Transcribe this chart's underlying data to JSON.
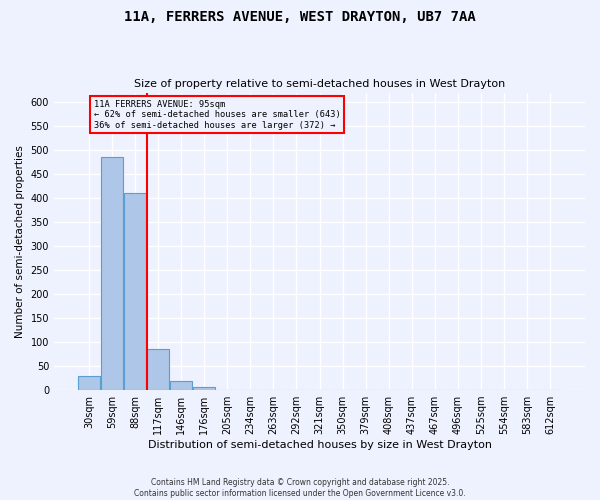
{
  "title": "11A, FERRERS AVENUE, WEST DRAYTON, UB7 7AA",
  "subtitle": "Size of property relative to semi-detached houses in West Drayton",
  "xlabel": "Distribution of semi-detached houses by size in West Drayton",
  "ylabel": "Number of semi-detached properties",
  "bar_categories": [
    "30sqm",
    "59sqm",
    "88sqm",
    "117sqm",
    "146sqm",
    "176sqm",
    "205sqm",
    "234sqm",
    "263sqm",
    "292sqm",
    "321sqm",
    "350sqm",
    "379sqm",
    "408sqm",
    "437sqm",
    "467sqm",
    "496sqm",
    "525sqm",
    "554sqm",
    "583sqm",
    "612sqm"
  ],
  "bar_values": [
    30,
    485,
    410,
    85,
    18,
    6,
    1,
    0,
    0,
    0,
    0,
    0,
    0,
    0,
    0,
    0,
    0,
    0,
    0,
    0,
    0
  ],
  "bar_color": "#aec6e8",
  "bar_edge_color": "#5a9fd4",
  "vline_color": "red",
  "annotation_title": "11A FERRERS AVENUE: 95sqm",
  "annotation_line1": "← 62% of semi-detached houses are smaller (643)",
  "annotation_line2": "36% of semi-detached houses are larger (372) →",
  "annotation_box_color": "red",
  "ylim": [
    0,
    620
  ],
  "yticks": [
    0,
    50,
    100,
    150,
    200,
    250,
    300,
    350,
    400,
    450,
    500,
    550,
    600
  ],
  "bg_color": "#eef2ff",
  "grid_color": "#ffffff",
  "footer": "Contains HM Land Registry data © Crown copyright and database right 2025.\nContains public sector information licensed under the Open Government Licence v3.0."
}
